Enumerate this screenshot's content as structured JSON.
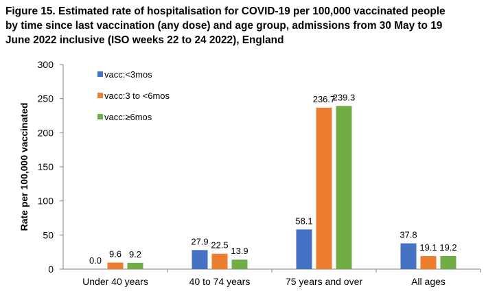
{
  "chart_data": {
    "type": "bar",
    "title_lines": [
      "Figure 15. Estimated rate of hospitalisation for COVID-19 per 100,000 vaccinated people",
      "by time since last vaccination (any dose) and age group, admissions from 30 May to 19",
      "June 2022 inclusive (ISO weeks 22 to 24 2022), England"
    ],
    "ylabel": "Rate per 100,000 vaccinated",
    "xlabel": "",
    "ylim": [
      0,
      300
    ],
    "yticks": [
      "0",
      "50",
      "100",
      "150",
      "200",
      "250",
      "300"
    ],
    "categories": [
      "Under 40 years",
      "40 to 74 years",
      "75 years and over",
      "All ages"
    ],
    "series": [
      {
        "name": "vacc:<3mos",
        "color": "#4472C4",
        "values": [
          0.0,
          27.9,
          58.1,
          37.8
        ],
        "labels": [
          "0.0",
          "27.9",
          "58.1",
          "37.8"
        ]
      },
      {
        "name": "vacc:3 to <6mos",
        "color": "#ED7D31",
        "values": [
          9.6,
          22.5,
          236.7,
          19.1
        ],
        "labels": [
          "9.6",
          "22.5",
          "236.7",
          "19.1"
        ]
      },
      {
        "name": "vacc:≥6mos",
        "color": "#70AD47",
        "values": [
          9.2,
          13.9,
          239.3,
          19.2
        ],
        "labels": [
          "9.2",
          "13.9",
          "239.3",
          "19.2"
        ]
      }
    ],
    "legend_position": "top-left",
    "grid": false
  }
}
